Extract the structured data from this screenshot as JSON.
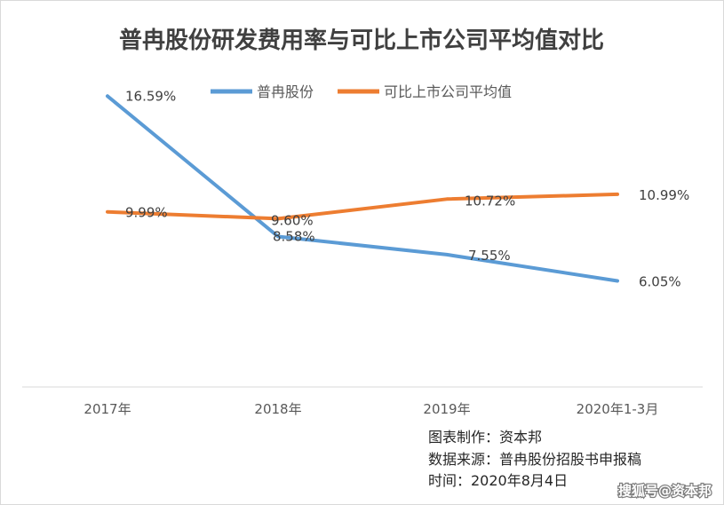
{
  "chart_data": {
    "type": "line",
    "title": "普冉股份研发费用率与可比上市公司平均值对比",
    "categories": [
      "2017年",
      "2018年",
      "2019年",
      "2020年1-3月"
    ],
    "ylim": [
      0,
      20
    ],
    "grid": false,
    "legend_position": "top",
    "series": [
      {
        "name": "普冉股份",
        "color": "#5b9bd5",
        "values": [
          16.59,
          8.58,
          7.55,
          6.05
        ],
        "labels": [
          "16.59%",
          "8.58%",
          "7.55%",
          "6.05%"
        ]
      },
      {
        "name": "可比上市公司平均值",
        "color": "#ed7d31",
        "values": [
          9.99,
          9.6,
          10.72,
          10.99
        ],
        "labels": [
          "9.99%",
          "9.60%",
          "10.72%",
          "10.99%"
        ]
      }
    ]
  },
  "notes": [
    "图表制作：资本邦",
    "数据来源：普冉股份招股书申报稿",
    "时间：2020年8月4日"
  ],
  "watermark": "搜狐号@资本邦"
}
